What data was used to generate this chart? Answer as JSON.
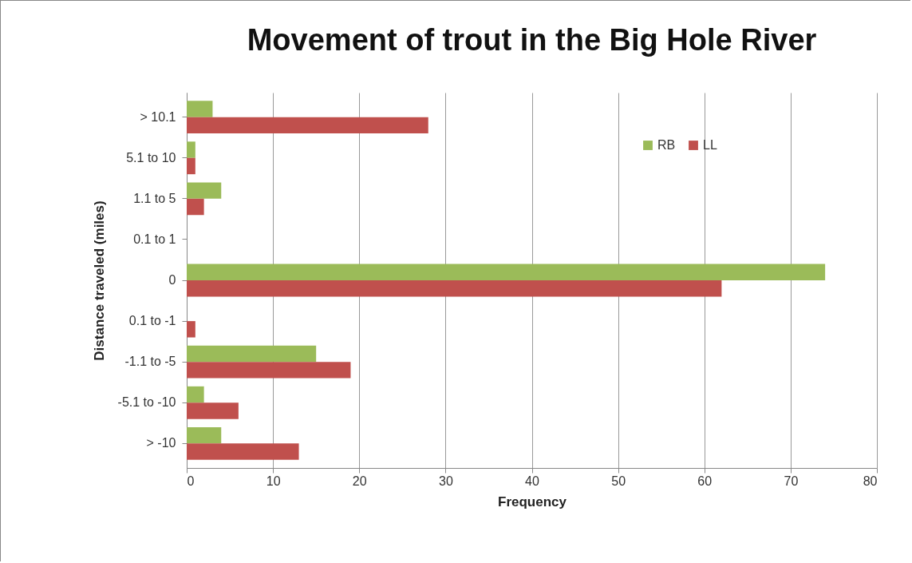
{
  "chart_data": {
    "type": "bar",
    "orientation": "horizontal",
    "title": "Movement of trout in the Big Hole River",
    "xlabel": "Frequency",
    "ylabel": "Distance traveled (miles)",
    "categories": [
      "> 10.1",
      "5.1 to 10",
      "1.1 to 5",
      "0.1 to 1",
      "0",
      "0.1 to -1",
      "-1.1 to -5",
      "-5.1 to -10",
      "> -10"
    ],
    "series": [
      {
        "name": "RB",
        "color": "#9bbb59",
        "values": [
          3,
          1,
          4,
          0,
          74,
          0,
          15,
          2,
          4
        ]
      },
      {
        "name": "LL",
        "color": "#c0504d",
        "values": [
          28,
          1,
          2,
          0,
          62,
          1,
          19,
          6,
          13
        ]
      }
    ],
    "xlim": [
      0,
      80
    ],
    "xticks": [
      0,
      10,
      20,
      30,
      40,
      50,
      60,
      70,
      80
    ],
    "grid": "x",
    "legend": "top right"
  }
}
